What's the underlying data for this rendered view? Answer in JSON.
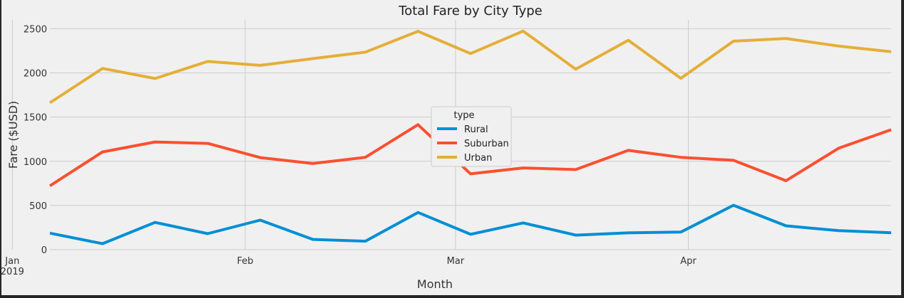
{
  "chart_data": {
    "type": "line",
    "title": "Total Fare by City Type",
    "xlabel": "Month",
    "ylabel": "Fare ($USD)",
    "ylim": [
      0,
      2600
    ],
    "yticks": [
      0,
      500,
      1000,
      1500,
      2000,
      2500
    ],
    "x": [
      "2019-01-06",
      "2019-01-13",
      "2019-01-20",
      "2019-01-27",
      "2019-02-03",
      "2019-02-10",
      "2019-02-17",
      "2019-02-24",
      "2019-03-03",
      "2019-03-10",
      "2019-03-17",
      "2019-03-24",
      "2019-03-31",
      "2019-04-07",
      "2019-04-14",
      "2019-04-21",
      "2019-04-28"
    ],
    "xticks": [
      {
        "date": "2019-01-01",
        "label": "Jan",
        "sublabel": "2019"
      },
      {
        "date": "2019-02-01",
        "label": "Feb",
        "sublabel": ""
      },
      {
        "date": "2019-03-01",
        "label": "Mar",
        "sublabel": ""
      },
      {
        "date": "2019-04-01",
        "label": "Apr",
        "sublabel": ""
      }
    ],
    "xlim": [
      "2019-01-06",
      "2019-04-28"
    ],
    "grid": true,
    "legend": {
      "title": "type",
      "placement": "center"
    },
    "series": [
      {
        "name": "Rural",
        "color": "#008fd5",
        "values": [
          187,
          68,
          308,
          181,
          334,
          116,
          96,
          421,
          174,
          303,
          164,
          190,
          199,
          502,
          270,
          215,
          191
        ]
      },
      {
        "name": "Suburban",
        "color": "#fc4f30",
        "values": [
          722,
          1106,
          1219,
          1203,
          1042,
          975,
          1045,
          1414,
          858,
          925,
          906,
          1124,
          1045,
          1011,
          780,
          1148,
          1357
        ]
      },
      {
        "name": "Urban",
        "color": "#e5ae38",
        "values": [
          1662,
          2051,
          1937,
          2130,
          2086,
          2162,
          2235,
          2471,
          2219,
          2474,
          2043,
          2370,
          1939,
          2359,
          2390,
          2304,
          2240
        ]
      }
    ]
  }
}
